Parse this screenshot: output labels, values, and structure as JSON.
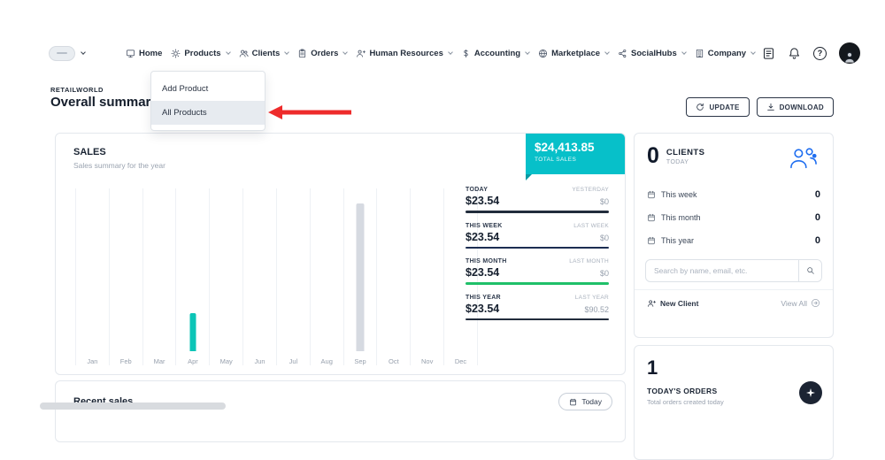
{
  "colors": {
    "accent_teal": "#07c0c9",
    "bar_teal": "#0cc5b7",
    "bar_gray": "#d6dae1",
    "link_blue": "#1f6ef0",
    "annotation_red": "#ee2b2b",
    "green": "#1fc069",
    "navy": "#222c3c"
  },
  "nav": {
    "items": [
      {
        "label": "Home"
      },
      {
        "label": "Products"
      },
      {
        "label": "Clients"
      },
      {
        "label": "Orders"
      },
      {
        "label": "Human Resources"
      },
      {
        "label": "Accounting"
      },
      {
        "label": "Marketplace"
      },
      {
        "label": "SocialHubs"
      },
      {
        "label": "Company"
      }
    ]
  },
  "products_menu": {
    "items": [
      {
        "label": "Add Product"
      },
      {
        "label": "All Products"
      }
    ]
  },
  "header": {
    "brand": "RETAILWORLD",
    "title": "Overall summary",
    "update_label": "UPDATE",
    "download_label": "DOWNLOAD"
  },
  "sales": {
    "title": "SALES",
    "subtitle": "Sales summary for the year",
    "badge": {
      "amount": "$24,413.85",
      "label": "TOTAL SALES",
      "color": "#07c0c9"
    },
    "stats": [
      {
        "label": "TODAY",
        "value": "$23.54",
        "compare_label": "YESTERDAY",
        "compare_value": "$0",
        "bar_color": "#222c3c"
      },
      {
        "label": "THIS WEEK",
        "value": "$23.54",
        "compare_label": "LAST WEEK",
        "compare_value": "$0",
        "bar_color": "#1c2d52"
      },
      {
        "label": "THIS MONTH",
        "value": "$23.54",
        "compare_label": "LAST MONTH",
        "compare_value": "$0",
        "bar_color": "#1fc069"
      },
      {
        "label": "THIS YEAR",
        "value": "$23.54",
        "compare_label": "LAST YEAR",
        "compare_value": "$90.52",
        "bar_color": "#222c3c"
      }
    ]
  },
  "chart_data": {
    "type": "bar",
    "title": "SALES",
    "categories": [
      "Jan",
      "Feb",
      "Mar",
      "Apr",
      "May",
      "Jun",
      "Jul",
      "Aug",
      "Sep",
      "Oct",
      "Nov",
      "Dec"
    ],
    "series": [
      {
        "name": "This year",
        "color": "#0cc5b7",
        "values": [
          0,
          0,
          0,
          23.54,
          0,
          0,
          0,
          0,
          0,
          0,
          0,
          0
        ]
      },
      {
        "name": "Last year",
        "color": "#d6dae1",
        "values": [
          0,
          0,
          0,
          0,
          0,
          0,
          0,
          0,
          90.52,
          0,
          0,
          0
        ]
      }
    ],
    "xlabel": "",
    "ylabel": "",
    "ylim": [
      0,
      100
    ],
    "grid": "vertical",
    "legend": "none"
  },
  "clients": {
    "count": "0",
    "title": "CLIENTS",
    "subtitle": "TODAY",
    "rows": [
      {
        "label": "This week",
        "value": "0"
      },
      {
        "label": "This month",
        "value": "0"
      },
      {
        "label": "This year",
        "value": "0"
      }
    ],
    "search_placeholder": "Search by name, email, etc.",
    "new_client": "New Client",
    "view_all": "View All"
  },
  "orders": {
    "count": "1",
    "title": "TODAY'S ORDERS",
    "subtitle": "Total orders created today"
  },
  "recent_sales": {
    "title": "Recent sales",
    "filter_label": "Today"
  }
}
